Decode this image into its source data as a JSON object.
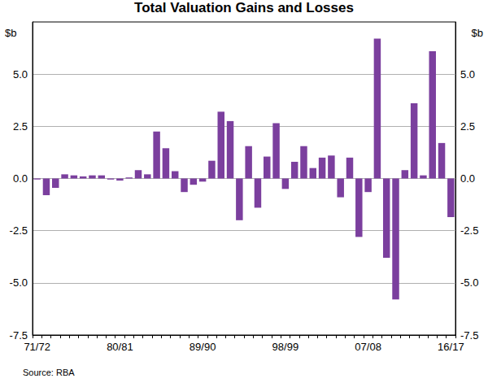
{
  "chart_data": {
    "type": "bar",
    "title": "Total Valuation Gains and Losses",
    "ylabel": "$b",
    "annotations": [
      "Source: RBA"
    ],
    "categories": [
      "71/72",
      null,
      null,
      null,
      null,
      null,
      null,
      null,
      null,
      "80/81",
      null,
      null,
      null,
      null,
      null,
      null,
      null,
      null,
      "89/90",
      null,
      null,
      null,
      null,
      null,
      null,
      null,
      null,
      "98/99",
      null,
      null,
      null,
      null,
      null,
      null,
      null,
      null,
      "07/08",
      null,
      null,
      null,
      null,
      null,
      null,
      null,
      null,
      "16/17"
    ],
    "values": [
      -0.05,
      -0.8,
      -0.45,
      0.2,
      0.15,
      0.1,
      0.15,
      0.15,
      -0.05,
      -0.1,
      0.05,
      0.4,
      0.2,
      2.25,
      1.45,
      0.35,
      -0.65,
      -0.3,
      -0.15,
      0.85,
      3.2,
      2.75,
      -2.0,
      1.55,
      -1.4,
      1.05,
      2.65,
      -0.5,
      0.8,
      1.55,
      0.5,
      1.0,
      1.1,
      -0.9,
      1.0,
      -2.8,
      -0.65,
      6.7,
      -3.8,
      -5.8,
      0.4,
      3.6,
      0.15,
      6.1,
      1.7,
      -1.85
    ],
    "color": "#7b3f9e",
    "ylim": [
      -7.5,
      7.5
    ],
    "yticks": [
      -7.5,
      {
        "value": -5,
        "label": "-5.0"
      },
      2.5,
      {
        "value": -2.5,
        "label": "-2.5"
      },
      {
        "value": 0,
        "label": "0.0"
      },
      {
        "value": 5,
        "label": "5.0"
      }
    ],
    "grid": true
  }
}
